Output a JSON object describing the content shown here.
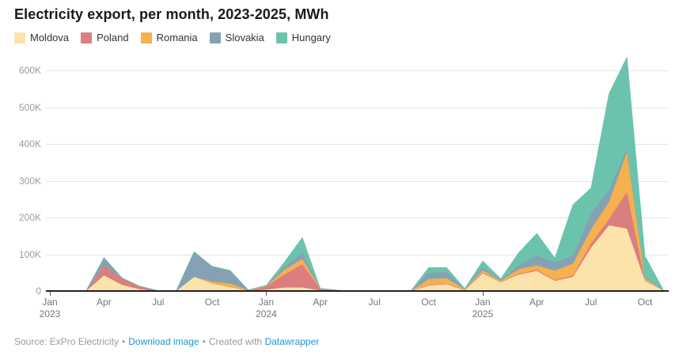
{
  "title": "Electricity export, per month, 2023-2025, MWh",
  "legend": [
    {
      "label": "Moldova",
      "color": "#FBE3AB"
    },
    {
      "label": "Poland",
      "color": "#DB7E7F"
    },
    {
      "label": "Romania",
      "color": "#F5B04F"
    },
    {
      "label": "Slovakia",
      "color": "#84A2B4"
    },
    {
      "label": "Hungary",
      "color": "#6CC3AD"
    }
  ],
  "footer": {
    "source_label": "Source: ExPro Electricity",
    "separator": "•",
    "download_label": "Download image",
    "created_with_label": "Created with",
    "datawrapper_label": "Datawrapper"
  },
  "chart_data": {
    "type": "area",
    "stacked": true,
    "title": "Electricity export, per month, 2023-2025, MWh",
    "unit": "MWh",
    "xlabel": "",
    "ylabel": "",
    "ylim": [
      0,
      600000
    ],
    "grid": true,
    "legend_position": "top-left",
    "months": [
      "Jan 2023",
      "Feb 2023",
      "Mar 2023",
      "Apr 2023",
      "May 2023",
      "Jun 2023",
      "Jul 2023",
      "Aug 2023",
      "Sep 2023",
      "Oct 2023",
      "Nov 2023",
      "Dec 2023",
      "Jan 2024",
      "Feb 2024",
      "Mar 2024",
      "Apr 2024",
      "May 2024",
      "Jun 2024",
      "Jul 2024",
      "Aug 2024",
      "Sep 2024",
      "Oct 2024",
      "Nov 2024",
      "Dec 2024",
      "Jan 2025",
      "Feb 2025",
      "Mar 2025",
      "Apr 2025",
      "May 2025",
      "Jun 2025",
      "Jul 2025",
      "Aug 2025",
      "Sep 2025",
      "Oct 2025",
      "Nov 2025"
    ],
    "series": [
      {
        "name": "Moldova",
        "color": "#FBE3AB",
        "values": [
          0,
          0,
          0,
          43000,
          17000,
          5000,
          0,
          0,
          39000,
          21000,
          11000,
          1000,
          4000,
          10000,
          10000,
          2000,
          1000,
          0,
          0,
          0,
          0,
          15000,
          19000,
          2000,
          48000,
          24000,
          45000,
          55000,
          28000,
          39000,
          118000,
          179000,
          170000,
          28000,
          2000
        ]
      },
      {
        "name": "Poland",
        "color": "#DB7E7F",
        "values": [
          0,
          0,
          0,
          28000,
          17000,
          8000,
          1000,
          0,
          0,
          0,
          0,
          0,
          9000,
          35000,
          63000,
          4000,
          1000,
          0,
          0,
          0,
          0,
          2000,
          1000,
          1000,
          2000,
          1000,
          2000,
          3000,
          2000,
          4000,
          11000,
          17000,
          100000,
          2000,
          0
        ]
      },
      {
        "name": "Romania",
        "color": "#F5B04F",
        "values": [
          0,
          0,
          0,
          0,
          0,
          0,
          0,
          0,
          0,
          5000,
          10000,
          2000,
          1000,
          13000,
          15000,
          1000,
          0,
          0,
          0,
          0,
          0,
          16000,
          15000,
          2000,
          7000,
          3000,
          13000,
          12000,
          26000,
          32000,
          39000,
          47000,
          110000,
          6000,
          0
        ]
      },
      {
        "name": "Slovakia",
        "color": "#84A2B4",
        "values": [
          0,
          0,
          0,
          20000,
          2000,
          0,
          0,
          0,
          68000,
          41000,
          35000,
          0,
          1000,
          8000,
          17000,
          0,
          0,
          0,
          0,
          0,
          0,
          17000,
          17000,
          1000,
          8000,
          2000,
          10000,
          27000,
          22000,
          22000,
          43000,
          32000,
          8000,
          3000,
          0
        ]
      },
      {
        "name": "Hungary",
        "color": "#6CC3AD",
        "values": [
          0,
          0,
          0,
          0,
          0,
          0,
          0,
          0,
          0,
          0,
          0,
          0,
          1000,
          13000,
          41000,
          0,
          0,
          0,
          0,
          0,
          0,
          14000,
          12000,
          1000,
          17000,
          4000,
          35000,
          60000,
          12000,
          138000,
          69000,
          262000,
          249000,
          56000,
          3000
        ]
      }
    ],
    "yticks": [
      {
        "value": 0,
        "label": "0"
      },
      {
        "value": 100000,
        "label": "100K"
      },
      {
        "value": 200000,
        "label": "200K"
      },
      {
        "value": 300000,
        "label": "300K"
      },
      {
        "value": 400000,
        "label": "400K"
      },
      {
        "value": 500000,
        "label": "500K"
      },
      {
        "value": 600000,
        "label": "600K"
      }
    ],
    "xticks": [
      {
        "i": 0,
        "label": "Jan",
        "year": "2023"
      },
      {
        "i": 3,
        "label": "Apr"
      },
      {
        "i": 6,
        "label": "Jul"
      },
      {
        "i": 9,
        "label": "Oct"
      },
      {
        "i": 12,
        "label": "Jan",
        "year": "2024"
      },
      {
        "i": 15,
        "label": "Apr"
      },
      {
        "i": 18,
        "label": "Jul"
      },
      {
        "i": 21,
        "label": "Oct"
      },
      {
        "i": 24,
        "label": "Jan",
        "year": "2025"
      },
      {
        "i": 27,
        "label": "Apr"
      },
      {
        "i": 30,
        "label": "Jul"
      },
      {
        "i": 33,
        "label": "Oct"
      }
    ]
  }
}
